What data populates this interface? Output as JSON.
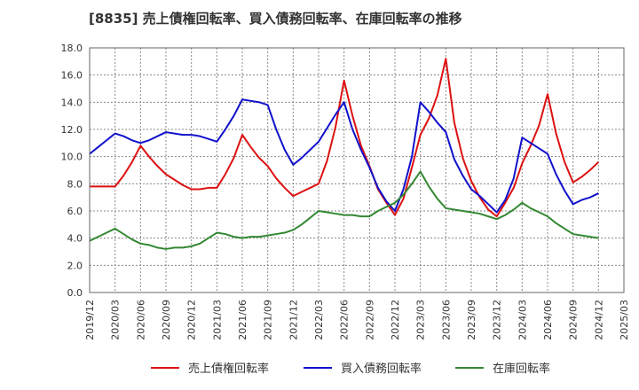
{
  "chart_data": {
    "type": "line",
    "title": "[8835]  売上債権回転率、買入債務回転率、在庫回転率の推移",
    "xlabel": "",
    "ylabel": "",
    "ylim": [
      0,
      18
    ],
    "yticks": [
      "0.0",
      "2.0",
      "4.0",
      "6.0",
      "8.0",
      "10.0",
      "12.0",
      "14.0",
      "16.0",
      "18.0"
    ],
    "x_tick_labels": [
      "2019/12",
      "2020/03",
      "2020/06",
      "2020/09",
      "2020/12",
      "2021/03",
      "2021/06",
      "2021/09",
      "2021/12",
      "2022/03",
      "2022/06",
      "2022/09",
      "2022/12",
      "2023/03",
      "2023/06",
      "2023/09",
      "2023/12",
      "2024/03",
      "2024/06",
      "2024/09",
      "2024/12",
      "2025/03"
    ],
    "x": [
      "2019/12",
      "2020/01",
      "2020/02",
      "2020/03",
      "2020/04",
      "2020/05",
      "2020/06",
      "2020/07",
      "2020/08",
      "2020/09",
      "2020/10",
      "2020/11",
      "2020/12",
      "2021/01",
      "2021/02",
      "2021/03",
      "2021/04",
      "2021/05",
      "2021/06",
      "2021/07",
      "2021/08",
      "2021/09",
      "2021/10",
      "2021/11",
      "2021/12",
      "2022/01",
      "2022/02",
      "2022/03",
      "2022/04",
      "2022/05",
      "2022/06",
      "2022/07",
      "2022/08",
      "2022/09",
      "2022/10",
      "2022/11",
      "2022/12",
      "2023/01",
      "2023/02",
      "2023/03",
      "2023/04",
      "2023/05",
      "2023/06",
      "2023/07",
      "2023/08",
      "2023/09",
      "2023/10",
      "2023/11",
      "2023/12",
      "2024/01",
      "2024/02",
      "2024/03",
      "2024/04",
      "2024/05",
      "2024/06",
      "2024/07",
      "2024/08",
      "2024/09",
      "2024/10",
      "2024/11",
      "2024/12"
    ],
    "series": [
      {
        "name": "売上債権回転率",
        "color": "#dd1111",
        "values": [
          7.8,
          7.8,
          7.8,
          7.8,
          8.6,
          9.6,
          10.8,
          10.0,
          9.3,
          8.7,
          8.3,
          7.9,
          7.6,
          7.6,
          7.7,
          7.7,
          8.7,
          9.9,
          11.6,
          10.7,
          9.9,
          9.3,
          8.4,
          7.7,
          7.1,
          7.4,
          7.7,
          8.0,
          9.7,
          12.2,
          15.6,
          13.0,
          10.8,
          9.3,
          7.6,
          6.6,
          5.7,
          6.9,
          9.2,
          11.6,
          12.8,
          14.5,
          17.2,
          12.5,
          9.9,
          8.2,
          7.0,
          6.1,
          5.6,
          6.6,
          7.7,
          9.5,
          10.8,
          12.3,
          14.6,
          11.7,
          9.6,
          8.1,
          8.5,
          9.0,
          9.6
        ]
      },
      {
        "name": "買入債務回転率",
        "color": "#1111cc",
        "values": [
          10.2,
          10.7,
          11.2,
          11.7,
          11.5,
          11.2,
          11.0,
          11.2,
          11.5,
          11.8,
          11.7,
          11.6,
          11.6,
          11.5,
          11.3,
          11.1,
          12.0,
          13.0,
          14.2,
          14.1,
          14.0,
          13.8,
          12.0,
          10.5,
          9.4,
          9.9,
          10.5,
          11.1,
          12.1,
          13.1,
          14.0,
          12.0,
          10.5,
          9.2,
          7.7,
          6.7,
          6.0,
          7.6,
          10.0,
          14.0,
          13.3,
          12.5,
          11.8,
          9.8,
          8.6,
          7.6,
          7.1,
          6.5,
          5.9,
          6.8,
          8.4,
          11.4,
          11.0,
          10.6,
          10.2,
          8.7,
          7.5,
          6.5,
          6.8,
          7.0,
          7.3
        ]
      },
      {
        "name": "在庫回転率",
        "color": "#338833",
        "values": [
          3.8,
          4.1,
          4.4,
          4.7,
          4.3,
          3.9,
          3.6,
          3.5,
          3.3,
          3.2,
          3.3,
          3.3,
          3.4,
          3.6,
          4.0,
          4.4,
          4.3,
          4.1,
          4.0,
          4.1,
          4.1,
          4.2,
          4.3,
          4.4,
          4.6,
          5.0,
          5.5,
          6.0,
          5.9,
          5.8,
          5.7,
          5.7,
          5.6,
          5.6,
          6.0,
          6.3,
          6.6,
          7.2,
          8.0,
          8.9,
          7.8,
          6.9,
          6.2,
          6.1,
          6.0,
          5.9,
          5.8,
          5.6,
          5.4,
          5.7,
          6.1,
          6.6,
          6.2,
          5.9,
          5.6,
          5.1,
          4.7,
          4.3,
          4.2,
          4.1,
          4.0
        ]
      }
    ],
    "legend_position": "bottom",
    "grid": true
  }
}
